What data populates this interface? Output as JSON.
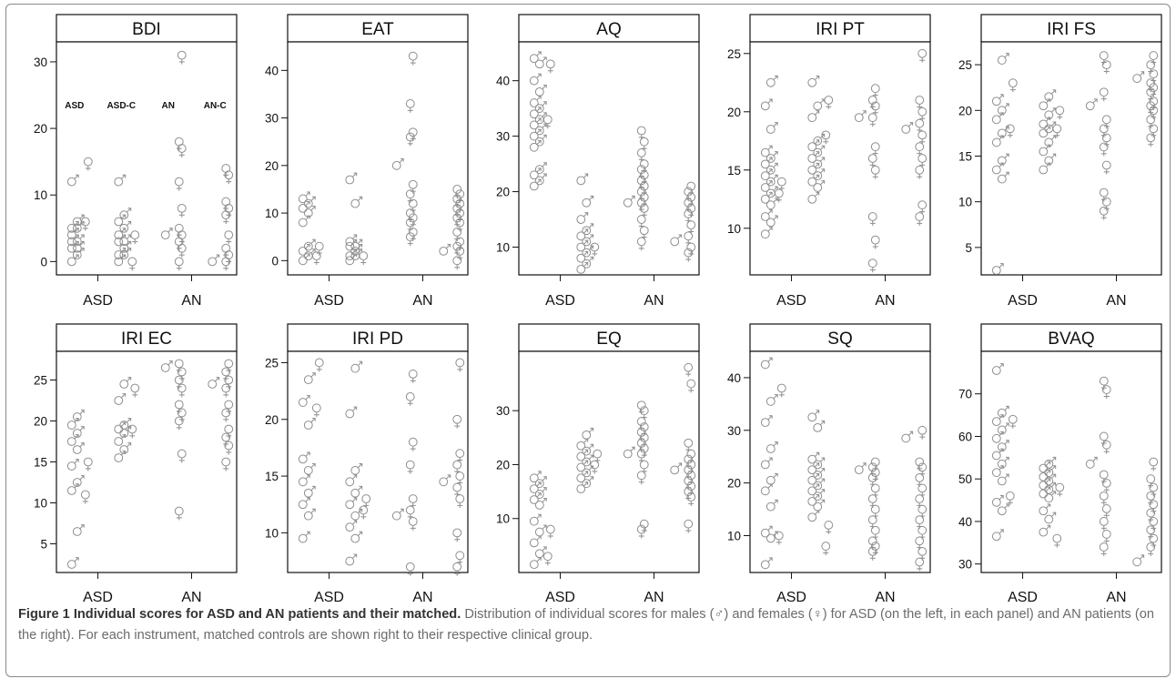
{
  "caption": {
    "title": "Figure 1 Individual scores for ASD and AN patients and their matched.",
    "body": "Distribution of individual scores for males (♂) and females (♀) for ASD (on the left, in each panel) and AN patients (on the right). For each instrument, matched controls are shown right to their respective clinical group."
  },
  "chart_data": [
    {
      "type": "scatter",
      "title": "BDI",
      "ylim": [
        -2,
        33
      ],
      "yticks": [
        0,
        10,
        20,
        30
      ],
      "xlabels": [
        "ASD",
        "AN"
      ],
      "group_labels": [
        "ASD",
        "ASD-C",
        "AN",
        "AN-C"
      ],
      "groups": [
        {
          "name": "ASD",
          "male": [
            0,
            1,
            2,
            2,
            3,
            3,
            4,
            5,
            5,
            6,
            12
          ],
          "female": [
            6,
            15
          ]
        },
        {
          "name": "ASD-C",
          "male": [
            0,
            1,
            1,
            2,
            3,
            3,
            4,
            5,
            6,
            7,
            12
          ],
          "female": [
            0,
            4
          ]
        },
        {
          "name": "AN",
          "male": [
            4
          ],
          "female": [
            0,
            2,
            3,
            4,
            5,
            8,
            12,
            17,
            18,
            31
          ]
        },
        {
          "name": "AN-C",
          "male": [
            0
          ],
          "female": [
            0,
            1,
            2,
            4,
            7,
            8,
            9,
            13,
            14
          ]
        }
      ]
    },
    {
      "type": "scatter",
      "title": "EAT",
      "ylim": [
        -3,
        46
      ],
      "yticks": [
        0,
        10,
        20,
        30,
        40
      ],
      "xlabels": [
        "ASD",
        "AN"
      ],
      "groups": [
        {
          "name": "ASD",
          "male": [
            0,
            1,
            2,
            3,
            8,
            10,
            11,
            12,
            13
          ],
          "female": [
            1,
            3
          ]
        },
        {
          "name": "ASD-C",
          "male": [
            0,
            1,
            1,
            2,
            3,
            3,
            4,
            12,
            17
          ],
          "female": [
            1
          ]
        },
        {
          "name": "AN",
          "male": [
            20
          ],
          "female": [
            5,
            6,
            8,
            9,
            10,
            12,
            14,
            16,
            26,
            27,
            33,
            43
          ]
        },
        {
          "name": "AN-C",
          "male": [
            2
          ],
          "female": [
            0,
            2,
            3,
            4,
            6,
            8,
            9,
            10,
            11,
            12,
            13,
            14,
            15
          ]
        }
      ]
    },
    {
      "type": "scatter",
      "title": "AQ",
      "ylim": [
        5,
        47
      ],
      "yticks": [
        10,
        20,
        30,
        40
      ],
      "xlabels": [
        "ASD",
        "AN"
      ],
      "groups": [
        {
          "name": "ASD",
          "male": [
            21,
            22,
            23,
            24,
            28,
            29,
            30,
            31,
            32,
            33,
            34,
            35,
            36,
            38,
            40,
            43,
            44
          ],
          "female": [
            33,
            43
          ]
        },
        {
          "name": "ASD-C",
          "male": [
            6,
            7,
            8,
            9,
            10,
            11,
            12,
            13,
            15,
            18,
            22
          ],
          "female": [
            10
          ]
        },
        {
          "name": "AN",
          "male": [
            18
          ],
          "female": [
            11,
            13,
            15,
            17,
            18,
            19,
            20,
            21,
            22,
            23,
            24,
            25,
            27,
            29,
            31
          ]
        },
        {
          "name": "AN-C",
          "male": [
            11
          ],
          "female": [
            9,
            10,
            12,
            14,
            16,
            17,
            18,
            19,
            20,
            21
          ]
        }
      ]
    },
    {
      "type": "scatter",
      "title": "IRI PT",
      "ylim": [
        6,
        26
      ],
      "yticks": [
        10,
        15,
        20,
        25
      ],
      "xlabels": [
        "ASD",
        "AN"
      ],
      "groups": [
        {
          "name": "ASD",
          "male": [
            9.5,
            10.5,
            11,
            12,
            12.5,
            13,
            13.5,
            14,
            14.5,
            15,
            15.5,
            16,
            16.5,
            18.5,
            20.5,
            22.5
          ],
          "female": [
            13,
            14
          ]
        },
        {
          "name": "ASD-C",
          "male": [
            12.5,
            13.5,
            14,
            14.5,
            15,
            15.5,
            16,
            16.5,
            17,
            17.5,
            19.5,
            20.5,
            22.5
          ],
          "female": [
            18,
            21
          ]
        },
        {
          "name": "AN",
          "male": [
            19.5
          ],
          "female": [
            7,
            9,
            11,
            15,
            16,
            17,
            19.5,
            20.5,
            21,
            22
          ]
        },
        {
          "name": "AN-C",
          "male": [
            18.5
          ],
          "female": [
            11,
            12,
            15,
            16,
            17,
            18,
            19,
            20,
            21,
            25
          ]
        }
      ]
    },
    {
      "type": "scatter",
      "title": "IRI FS",
      "ylim": [
        2,
        27.5
      ],
      "yticks": [
        5,
        10,
        15,
        20,
        25
      ],
      "xlabels": [
        "ASD",
        "AN"
      ],
      "groups": [
        {
          "name": "ASD",
          "male": [
            2.5,
            12.5,
            13.5,
            14.5,
            16.5,
            17.5,
            19,
            20,
            21,
            25.5
          ],
          "female": [
            18,
            23
          ]
        },
        {
          "name": "ASD-C",
          "male": [
            13.5,
            14.5,
            15.5,
            16.5,
            17.5,
            18,
            18.5,
            19.5,
            20.5,
            21.5
          ],
          "female": [
            18,
            20
          ]
        },
        {
          "name": "AN",
          "male": [
            20.5
          ],
          "female": [
            9,
            10,
            11,
            14,
            16,
            17,
            18,
            19,
            22,
            25,
            26
          ]
        },
        {
          "name": "AN-C",
          "male": [
            23.5
          ],
          "female": [
            17,
            18,
            19,
            20,
            20.5,
            21,
            22,
            22.5,
            23,
            24,
            25,
            26
          ]
        }
      ]
    },
    {
      "type": "scatter",
      "title": "IRI EC",
      "ylim": [
        1.5,
        28.5
      ],
      "yticks": [
        5,
        10,
        15,
        20,
        25
      ],
      "xlabels": [
        "ASD",
        "AN"
      ],
      "groups": [
        {
          "name": "ASD",
          "male": [
            2.5,
            6.5,
            11.5,
            12.5,
            14.5,
            16.5,
            17.5,
            18.5,
            19.5,
            20.5
          ],
          "female": [
            11,
            15
          ]
        },
        {
          "name": "ASD-C",
          "male": [
            15.5,
            16.5,
            17.5,
            18.5,
            19,
            19.5,
            22.5,
            24.5
          ],
          "female": [
            19,
            24
          ]
        },
        {
          "name": "AN",
          "male": [
            26.5
          ],
          "female": [
            9,
            16,
            20,
            21,
            22,
            24,
            25,
            26,
            27
          ]
        },
        {
          "name": "AN-C",
          "male": [
            24.5
          ],
          "female": [
            15,
            17,
            18,
            19,
            21,
            22,
            24,
            25,
            26,
            27
          ]
        }
      ]
    },
    {
      "type": "scatter",
      "title": "IRI PD",
      "ylim": [
        6.5,
        26
      ],
      "yticks": [
        10,
        15,
        20,
        25
      ],
      "xlabels": [
        "ASD",
        "AN"
      ],
      "groups": [
        {
          "name": "ASD",
          "male": [
            9.5,
            11.5,
            12.5,
            13.5,
            14.5,
            15.5,
            16.5,
            19.5,
            21.5,
            23.5
          ],
          "female": [
            21,
            25
          ]
        },
        {
          "name": "ASD-C",
          "male": [
            7.5,
            9.5,
            10.5,
            11.5,
            12.5,
            13.5,
            14.5,
            15.5,
            20.5,
            24.5
          ],
          "female": [
            12,
            13
          ]
        },
        {
          "name": "AN",
          "male": [
            11.5
          ],
          "female": [
            7,
            11,
            12,
            13,
            16,
            18,
            22,
            24
          ]
        },
        {
          "name": "AN-C",
          "male": [
            14.5
          ],
          "female": [
            7,
            8,
            10,
            13,
            14,
            15,
            16,
            17,
            20,
            25
          ]
        }
      ]
    },
    {
      "type": "scatter",
      "title": "EQ",
      "ylim": [
        0,
        41
      ],
      "yticks": [
        10,
        20,
        30
      ],
      "xlabels": [
        "ASD",
        "AN"
      ],
      "groups": [
        {
          "name": "ASD",
          "male": [
            1.5,
            3.5,
            5.5,
            7.5,
            9.5,
            12.5,
            13.5,
            14.5,
            15.5,
            16.5,
            17.5
          ],
          "female": [
            3,
            8
          ]
        },
        {
          "name": "ASD-C",
          "male": [
            15.5,
            16.5,
            17.5,
            18.5,
            19.5,
            20.5,
            21.5,
            22.5,
            23.5,
            25.5
          ],
          "female": [
            20,
            22
          ]
        },
        {
          "name": "AN",
          "male": [
            22
          ],
          "female": [
            8,
            9,
            18,
            20,
            22,
            23,
            24,
            25,
            26,
            27,
            28,
            30,
            31
          ]
        },
        {
          "name": "AN-C",
          "male": [
            19
          ],
          "female": [
            9,
            14,
            15,
            16,
            17,
            18,
            19,
            20,
            21,
            22,
            24,
            35,
            38
          ]
        }
      ]
    },
    {
      "type": "scatter",
      "title": "SQ",
      "ylim": [
        3,
        45
      ],
      "yticks": [
        10,
        20,
        30,
        40
      ],
      "xlabels": [
        "ASD",
        "AN"
      ],
      "groups": [
        {
          "name": "ASD",
          "male": [
            4.5,
            9.5,
            10.5,
            15.5,
            18.5,
            20.5,
            23.5,
            26.5,
            31.5,
            35.5,
            42.5
          ],
          "female": [
            10,
            38
          ]
        },
        {
          "name": "ASD-C",
          "male": [
            13.5,
            15.5,
            16.5,
            17.5,
            18.5,
            19.5,
            20.5,
            21.5,
            22.5,
            23.5,
            24.5,
            30.5,
            32.5
          ],
          "female": [
            8,
            12
          ]
        },
        {
          "name": "AN",
          "male": [
            22.5
          ],
          "female": [
            7,
            8,
            9,
            11,
            13,
            15,
            17,
            19,
            21,
            22,
            23,
            24
          ]
        },
        {
          "name": "AN-C",
          "male": [
            28.5
          ],
          "female": [
            5,
            7,
            9,
            11,
            13,
            15,
            17,
            19,
            21,
            23,
            24,
            30
          ]
        }
      ]
    },
    {
      "type": "scatter",
      "title": "BVAQ",
      "ylim": [
        28,
        80
      ],
      "yticks": [
        30,
        40,
        50,
        60,
        70
      ],
      "xlabels": [
        "ASD",
        "AN"
      ],
      "groups": [
        {
          "name": "ASD",
          "male": [
            36.5,
            42.5,
            44.5,
            49.5,
            51.5,
            53.5,
            55.5,
            57.5,
            59.5,
            61.5,
            63.5,
            65.5,
            75.5
          ],
          "female": [
            46,
            64
          ]
        },
        {
          "name": "ASD-C",
          "male": [
            37.5,
            40.5,
            42.5,
            45.5,
            46.5,
            47.5,
            48.5,
            49.5,
            50.5,
            51.5,
            52.5,
            53.5
          ],
          "female": [
            36,
            48
          ]
        },
        {
          "name": "AN",
          "male": [
            53.5
          ],
          "female": [
            34,
            37,
            40,
            43,
            46,
            49,
            51,
            58,
            60,
            71,
            73
          ]
        },
        {
          "name": "AN-C",
          "male": [
            30.5
          ],
          "female": [
            34,
            36,
            38,
            40,
            42,
            44,
            46,
            48,
            50,
            54
          ]
        }
      ]
    }
  ]
}
